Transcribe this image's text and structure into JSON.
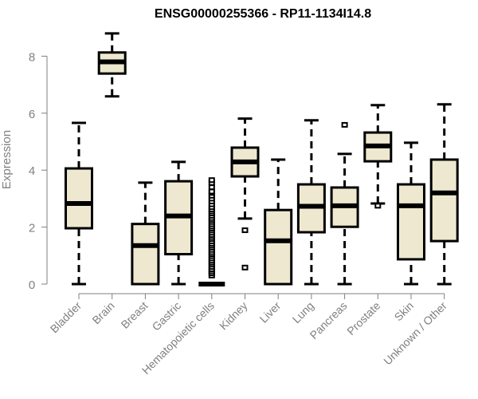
{
  "chart_data": {
    "type": "box",
    "title": "ENSG00000255366 - RP11-1134I14.8",
    "xlabel": "",
    "ylabel": "Expression",
    "ylim": [
      0,
      8.9
    ],
    "yticks": [
      0,
      2,
      4,
      6,
      8
    ],
    "grid": false,
    "colors": {
      "box_fill": "#EDE8CF",
      "stroke": "#000000",
      "axis": "#808080",
      "label": "#808080"
    },
    "categories": [
      "Bladder",
      "Brain",
      "Breast",
      "Gastric",
      "Hematopoietic cells",
      "Kidney",
      "Liver",
      "Lung",
      "Pancreas",
      "Prostate",
      "Skin",
      "Unknown / Other"
    ],
    "boxes": [
      {
        "min": 0,
        "q1": 1.96,
        "median": 2.83,
        "q3": 4.06,
        "max": 5.66,
        "outliers": []
      },
      {
        "min": 6.59,
        "q1": 7.39,
        "median": 7.8,
        "q3": 8.13,
        "max": 8.8,
        "outliers": []
      },
      {
        "min": 0,
        "q1": 0,
        "median": 1.35,
        "q3": 2.11,
        "max": 3.56,
        "outliers": []
      },
      {
        "min": 0,
        "q1": 1.05,
        "median": 2.39,
        "q3": 3.61,
        "max": 4.29,
        "outliers": []
      },
      {
        "min": 0,
        "q1": 0,
        "median": 0,
        "q3": 0,
        "max": 0,
        "outliers": [
          0.3,
          0.38,
          0.45,
          0.52,
          0.6,
          0.68,
          0.75,
          0.82,
          0.9,
          0.98,
          1.05,
          1.12,
          1.2,
          1.28,
          1.35,
          1.42,
          1.5,
          1.58,
          1.65,
          1.72,
          1.8,
          1.88,
          1.95,
          2.02,
          2.1,
          2.18,
          2.25,
          2.32,
          2.4,
          2.48,
          2.55,
          2.62,
          2.7,
          2.8,
          2.9,
          3.0,
          3.1,
          3.2,
          3.25,
          3.4,
          3.55,
          3.65
        ]
      },
      {
        "min": 2.3,
        "q1": 3.78,
        "median": 4.29,
        "q3": 4.79,
        "max": 5.81,
        "outliers": [
          1.89,
          0.58
        ]
      },
      {
        "min": 0,
        "q1": 0,
        "median": 1.52,
        "q3": 2.6,
        "max": 4.37,
        "outliers": []
      },
      {
        "min": 0,
        "q1": 1.82,
        "median": 2.73,
        "q3": 3.5,
        "max": 5.75,
        "outliers": []
      },
      {
        "min": 0,
        "q1": 2.01,
        "median": 2.75,
        "q3": 3.39,
        "max": 4.57,
        "outliers": [
          5.59
        ]
      },
      {
        "min": 2.83,
        "q1": 4.31,
        "median": 4.85,
        "q3": 5.32,
        "max": 6.28,
        "outliers": [
          2.75
        ]
      },
      {
        "min": 0,
        "q1": 0.87,
        "median": 2.75,
        "q3": 3.5,
        "max": 4.96,
        "outliers": []
      },
      {
        "min": 0,
        "q1": 1.51,
        "median": 3.2,
        "q3": 4.37,
        "max": 6.31,
        "outliers": []
      }
    ]
  }
}
